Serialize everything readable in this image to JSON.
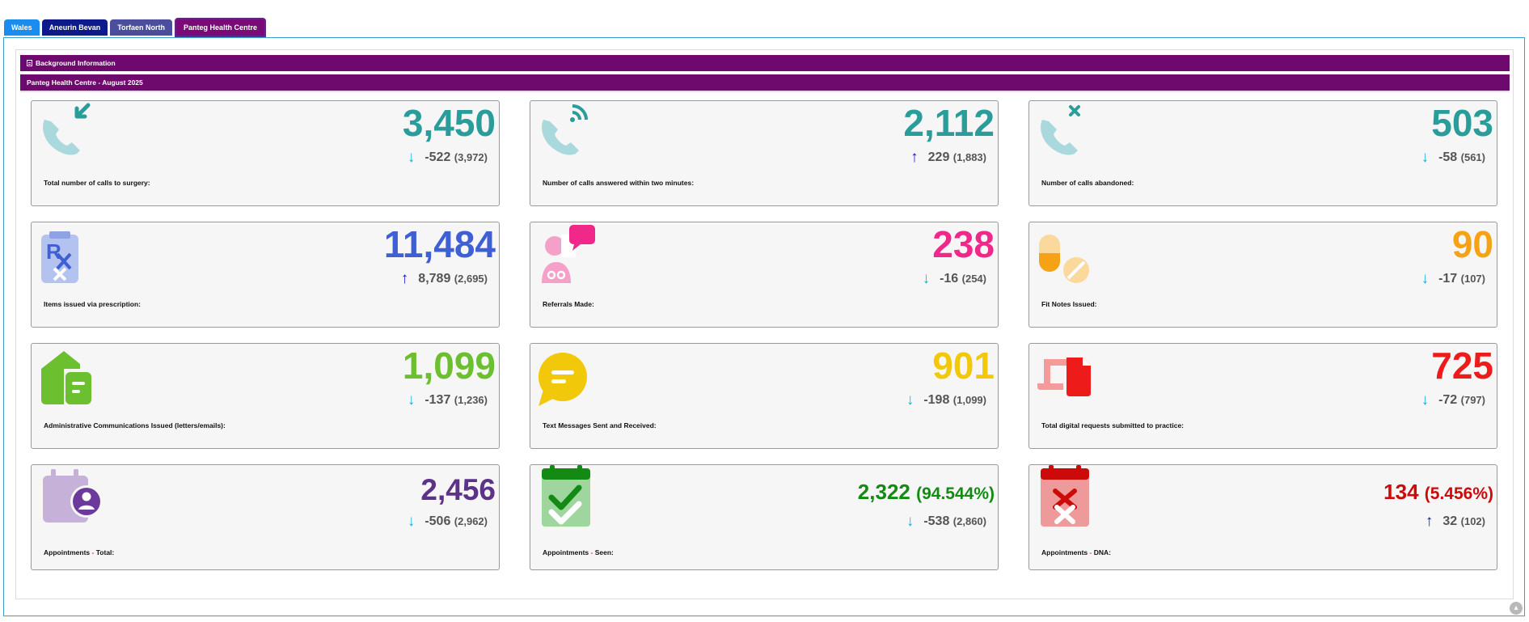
{
  "tabs": [
    "Wales",
    "Aneurin Bevan",
    "Torfaen North",
    "Panteg Health Centre"
  ],
  "background_title": "Background Information",
  "section_title": "Panteg Health Centre - August 2025",
  "cards": [
    {
      "value": "3,450",
      "arrow": "↓",
      "delta": "-522",
      "prev": "(3,972)",
      "label": "Total number of calls to surgery:",
      "color": "#2a9d9b",
      "icon": "phone-incoming-icon"
    },
    {
      "value": "2,112",
      "arrow": "↑",
      "delta": "229",
      "prev": "(1,883)",
      "label": "Number of calls answered within two minutes:",
      "color": "#2a9d9b",
      "icon": "phone-answered-icon"
    },
    {
      "value": "503",
      "arrow": "↓",
      "delta": "-58",
      "prev": "(561)",
      "label": "Number of calls abandoned:",
      "color": "#2a9d9b",
      "icon": "phone-abandoned-icon"
    },
    {
      "value": "11,484",
      "arrow": "↑",
      "delta": "8,789",
      "prev": "(2,695)",
      "label": "Items issued via prescription:",
      "color": "#3f5fd4",
      "icon": "prescription-icon"
    },
    {
      "value": "238",
      "arrow": "↓",
      "delta": "-16",
      "prev": "(254)",
      "label": "Referrals Made:",
      "color": "#f0288a",
      "icon": "doctor-referral-icon"
    },
    {
      "value": "90",
      "arrow": "↓",
      "delta": "-17",
      "prev": "(107)",
      "label": "Fit Notes Issued:",
      "color": "#f5a315",
      "icon": "pills-icon"
    },
    {
      "value": "1,099",
      "arrow": "↓",
      "delta": "-137",
      "prev": "(1,236)",
      "label": "Administrative Communications Issued (letters/emails):",
      "color": "#6cbf2e",
      "icon": "mail-house-icon"
    },
    {
      "value": "901",
      "arrow": "↓",
      "delta": "-198",
      "prev": "(1,099)",
      "label": "Text Messages Sent and Received:",
      "color": "#f2c80a",
      "icon": "chat-bubble-icon"
    },
    {
      "value": "725",
      "arrow": "↓",
      "delta": "-72",
      "prev": "(797)",
      "label": "Total digital requests submitted to practice:",
      "color": "#ee1b1b",
      "icon": "digital-request-icon"
    },
    {
      "value": "2,456",
      "arrow": "↓",
      "delta": "-506",
      "prev": "(2,962)",
      "label_pre": "Appointments",
      "label_post": "Total:",
      "color": "#5c3388",
      "icon": "calendar-user-icon"
    },
    {
      "value": "2,322",
      "pct": "(94.544%)",
      "arrow": "↓",
      "delta": "-538",
      "prev": "(2,860)",
      "label_pre": "Appointments",
      "label_post": "Seen:",
      "color": "#138a13",
      "icon": "calendar-check-icon"
    },
    {
      "value": "134",
      "pct": "(5.456%)",
      "arrow": "↑",
      "delta": "32",
      "prev": "(102)",
      "label_pre": "Appointments",
      "label_post": "DNA:",
      "color": "#cc0a0a",
      "icon": "calendar-cross-icon"
    }
  ],
  "separator": "-",
  "scroll_top_icon": "chevron-up-icon"
}
